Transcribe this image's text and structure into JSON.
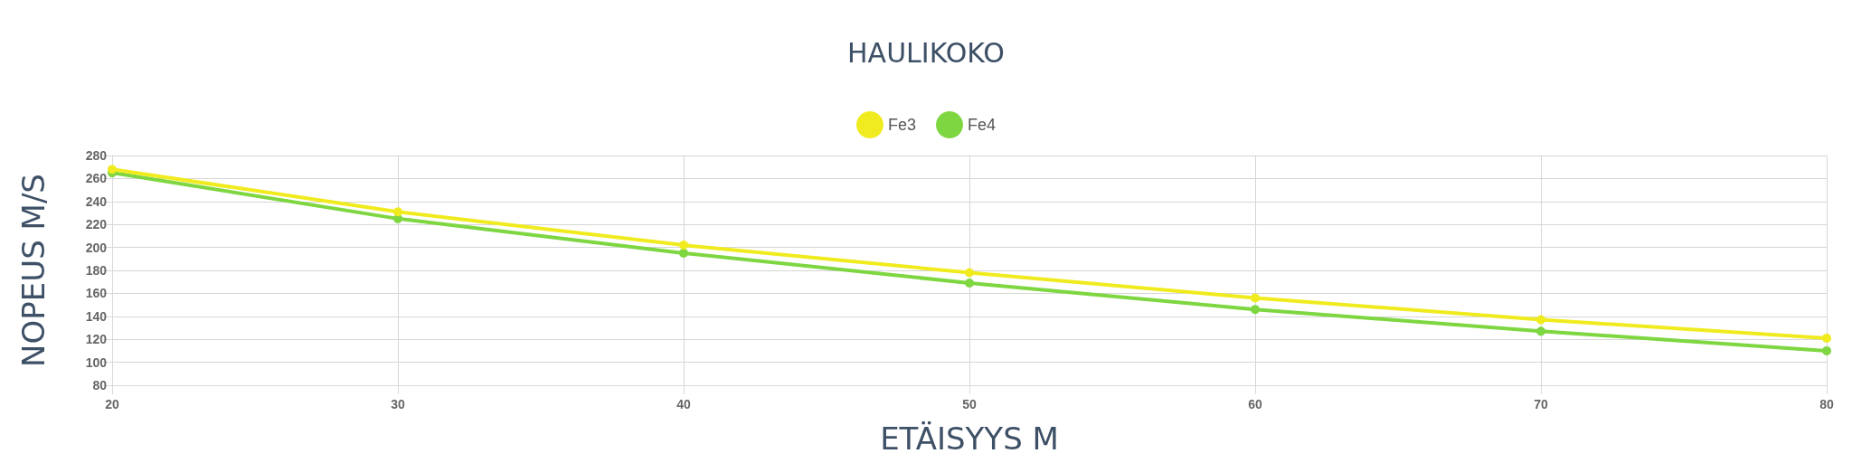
{
  "chart_data": {
    "type": "line",
    "title": "HAULIKOKO",
    "xlabel": "ETÄISYYS M",
    "ylabel": "NOPEUS M/S",
    "x": [
      20,
      30,
      40,
      50,
      60,
      70,
      80
    ],
    "series": [
      {
        "name": "Fe3",
        "color": "#f0eb1e",
        "values": [
          268,
          231,
          202,
          178,
          156,
          137,
          121
        ]
      },
      {
        "name": "Fe4",
        "color": "#7ed641",
        "values": [
          265,
          225,
          195,
          169,
          146,
          127,
          110
        ]
      }
    ],
    "xlim": [
      20,
      80
    ],
    "xticks": [
      20,
      30,
      40,
      50,
      60,
      70,
      80
    ],
    "ylim": [
      80,
      280
    ],
    "yticks": [
      80,
      100,
      120,
      140,
      160,
      180,
      200,
      220,
      240,
      260,
      280
    ],
    "grid": true,
    "legend": "top",
    "marker": "circle",
    "line_style": "solid"
  }
}
